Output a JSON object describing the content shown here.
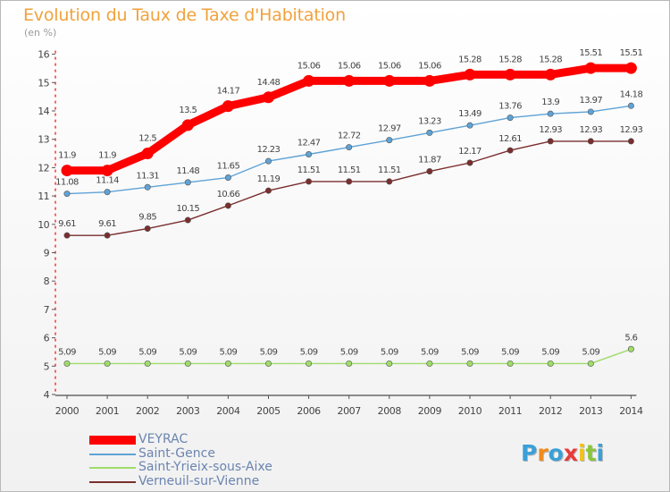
{
  "header": {
    "title": "Evolution du Taux de Taxe d'Habitation",
    "subtitle": "(en %)"
  },
  "chart_data": {
    "type": "line",
    "title": "Evolution du Taux de Taxe d'Habitation",
    "subtitle": "(en %)",
    "xlabel": "",
    "ylabel": "",
    "x": [
      "2000",
      "2001",
      "2002",
      "2003",
      "2004",
      "2005",
      "2006",
      "2007",
      "2008",
      "2009",
      "2010",
      "2011",
      "2012",
      "2013",
      "2014"
    ],
    "ylim": [
      4,
      16
    ],
    "yticks": [
      4,
      5,
      6,
      7,
      8,
      9,
      10,
      11,
      12,
      13,
      14,
      15,
      16
    ],
    "grid": false,
    "legend_position": "bottom-left",
    "series": [
      {
        "name": "VEYRAC",
        "color": "#ff0000",
        "values": [
          11.9,
          11.9,
          12.5,
          13.5,
          14.17,
          14.48,
          15.06,
          15.06,
          15.06,
          15.06,
          15.28,
          15.28,
          15.28,
          15.51,
          15.51
        ],
        "labels": [
          "11.9",
          "11.9",
          "12.5",
          "13.5",
          "14.17",
          "14.48",
          "15.06",
          "15.06",
          "15.06",
          "15.06",
          "15.28",
          "15.28",
          "15.28",
          "15.51",
          "15.51"
        ]
      },
      {
        "name": "Saint-Gence",
        "color": "#5fa3d6",
        "values": [
          11.08,
          11.14,
          11.31,
          11.48,
          11.65,
          12.23,
          12.47,
          12.72,
          12.97,
          13.23,
          13.49,
          13.76,
          13.9,
          13.97,
          14.18
        ],
        "labels": [
          "11.08",
          "11.14",
          "11.31",
          "11.48",
          "11.65",
          "12.23",
          "12.47",
          "12.72",
          "12.97",
          "13.23",
          "13.49",
          "13.76",
          "13.9",
          "13.97",
          "14.18"
        ]
      },
      {
        "name": "Saint-Yrieix-sous-Aixe",
        "color": "#9fdc6a",
        "values": [
          5.09,
          5.09,
          5.09,
          5.09,
          5.09,
          5.09,
          5.09,
          5.09,
          5.09,
          5.09,
          5.09,
          5.09,
          5.09,
          5.09,
          5.6
        ],
        "labels": [
          "5.09",
          "5.09",
          "5.09",
          "5.09",
          "5.09",
          "5.09",
          "5.09",
          "5.09",
          "5.09",
          "5.09",
          "5.09",
          "5.09",
          "5.09",
          "5.09",
          "5.6"
        ]
      },
      {
        "name": "Verneuil-sur-Vienne",
        "color": "#7a2e2e",
        "values": [
          9.61,
          9.61,
          9.85,
          10.15,
          10.66,
          11.19,
          11.51,
          11.51,
          11.51,
          11.87,
          12.17,
          12.61,
          12.93,
          12.93,
          12.93
        ],
        "labels": [
          "9.61",
          "9.61",
          "9.85",
          "10.15",
          "10.66",
          "11.19",
          "11.51",
          "11.51",
          "11.51",
          "11.87",
          "12.17",
          "12.61",
          "12.93",
          "12.93",
          "12.93"
        ]
      }
    ]
  },
  "logo": {
    "letters": [
      "P",
      "r",
      "o",
      "x",
      "i",
      "t",
      "i"
    ],
    "colors": [
      "#3aa0d8",
      "#f08a1c",
      "#3aa0d8",
      "#e83a3a",
      "#f0c21c",
      "#8bc53f",
      "#3aa0d8"
    ]
  }
}
